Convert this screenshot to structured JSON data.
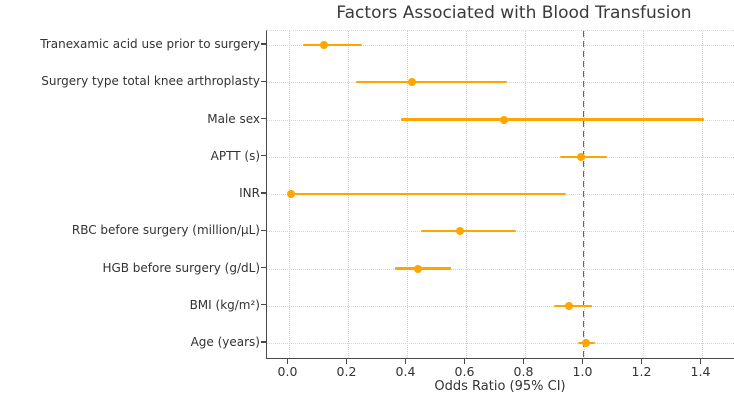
{
  "title": "Factors Associated with Blood Transfusion",
  "colors": {
    "accent": "#FFA500",
    "reference_line": "#666666",
    "grid": "#cfcfcf",
    "text": "#333333",
    "spine": "#4a4a4a"
  },
  "chart_data": {
    "type": "scatter",
    "variant": "forest-plot",
    "title": "Factors Associated with Blood Transfusion",
    "xlabel": "Odds Ratio (95% CI)",
    "ylabel": "",
    "xlim": [
      -0.07,
      1.51
    ],
    "x_ticks": [
      0.0,
      0.2,
      0.4,
      0.6,
      0.8,
      1.0,
      1.2,
      1.4
    ],
    "x_tick_labels": [
      "0.0",
      "0.2",
      "0.4",
      "0.6",
      "0.8",
      "1.0",
      "1.2",
      "1.4"
    ],
    "reference_line": 1.0,
    "grid": true,
    "legend": false,
    "marker_color": "#FFA500",
    "categories": [
      "Tranexamic acid use prior to surgery",
      "Surgery type total knee arthroplasty",
      "Male sex",
      "APTT (s)",
      "INR",
      "RBC before surgery (million/μL)",
      "HGB before surgery (g/dL)",
      "BMI (kg/m²)",
      "Age (years)"
    ],
    "points": [
      {
        "label": "Tranexamic acid use prior to surgery",
        "or": 0.12,
        "ci": [
          0.05,
          0.25
        ]
      },
      {
        "label": "Surgery type total knee arthroplasty",
        "or": 0.42,
        "ci": [
          0.23,
          0.74
        ]
      },
      {
        "label": "Male sex",
        "or": 0.73,
        "ci": [
          0.38,
          1.41
        ]
      },
      {
        "label": "APTT (s)",
        "or": 0.99,
        "ci": [
          0.92,
          1.08
        ]
      },
      {
        "label": "INR",
        "or": 0.01,
        "ci": [
          0.0,
          0.94
        ]
      },
      {
        "label": "RBC before surgery (million/μL)",
        "or": 0.58,
        "ci": [
          0.45,
          0.77
        ]
      },
      {
        "label": "HGB before surgery (g/dL)",
        "or": 0.44,
        "ci": [
          0.36,
          0.55
        ]
      },
      {
        "label": "BMI (kg/m²)",
        "or": 0.95,
        "ci": [
          0.9,
          1.03
        ]
      },
      {
        "label": "Age (years)",
        "or": 1.01,
        "ci": [
          0.98,
          1.04
        ]
      }
    ]
  }
}
